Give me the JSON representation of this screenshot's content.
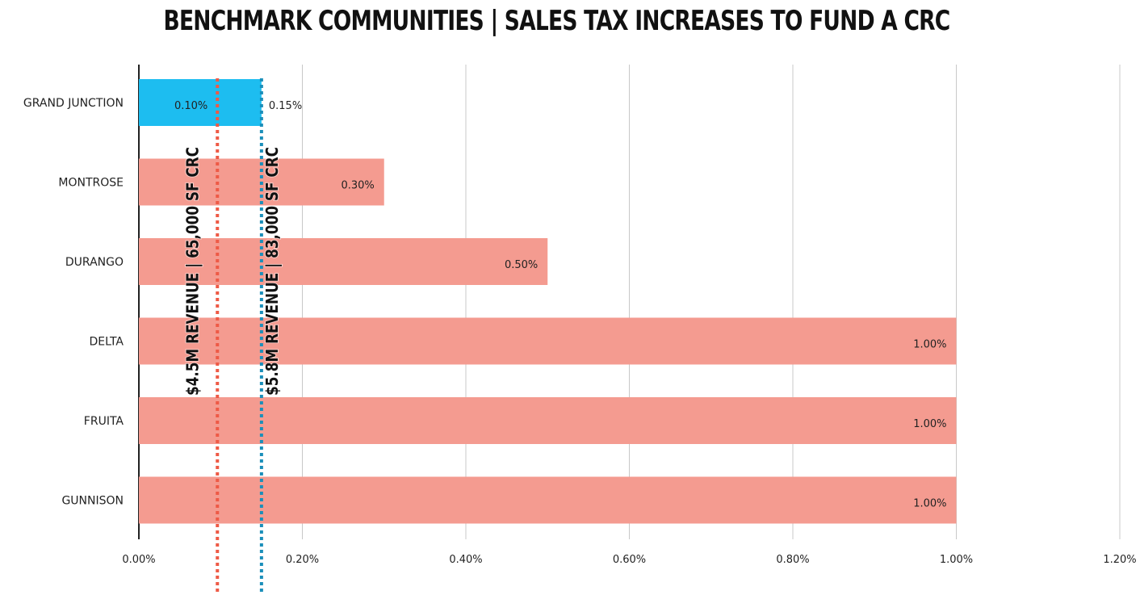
{
  "chart_data": {
    "type": "bar",
    "orientation": "horizontal",
    "title": "BENCHMARK COMMUNITIES | SALES TAX INCREASES TO FUND A CRC",
    "categories": [
      "GRAND JUNCTION",
      "MONTROSE",
      "DURANGO",
      "DELTA",
      "FRUITA",
      "GUNNISON"
    ],
    "values": [
      0.15,
      0.3,
      0.5,
      1.0,
      1.0,
      1.0
    ],
    "value_labels": [
      "0.15%",
      "0.30%",
      "0.50%",
      "1.00%",
      "1.00%",
      "1.00%"
    ],
    "bar_colors": [
      "#1dbdf0",
      "#f49b90",
      "#f49b90",
      "#f49b90",
      "#f49b90",
      "#f49b90"
    ],
    "xlim": [
      0,
      1.2
    ],
    "x_ticks": [
      0,
      0.2,
      0.4,
      0.6,
      0.8,
      1.0,
      1.2
    ],
    "x_tick_labels": [
      "0.00%",
      "0.20%",
      "0.40%",
      "0.60%",
      "0.80%",
      "1.00%",
      "1.20%"
    ],
    "grid": "vertical",
    "reference_lines": [
      {
        "value": 0.1,
        "label": "0.10%",
        "annotation": "$4.5M REVENUE | 65,000 SF CRC",
        "color": "#ee5a46",
        "style": "dotted"
      },
      {
        "value": 0.15,
        "label": "",
        "annotation": "$5.8M REVENUE | 83,000 SF CRC",
        "color": "#1b8fba",
        "style": "dotted"
      }
    ]
  }
}
